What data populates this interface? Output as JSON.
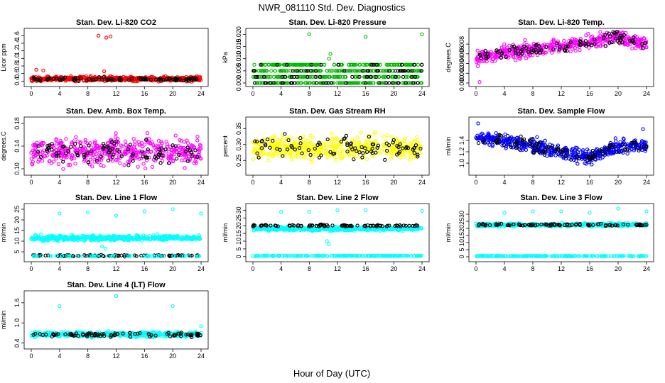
{
  "figure": {
    "title": "NWR_081110  Std. Dev. Diagnostics",
    "xlabel": "Hour of Day (UTC)"
  },
  "chart_data": [
    {
      "type": "scatter",
      "title": "Stan. Dev. Li-820 CO2",
      "ylabel": "Licor ppm",
      "xlim": [
        0,
        24
      ],
      "xticks": [
        0,
        4,
        8,
        12,
        16,
        20,
        24
      ],
      "ylim": [
        0.35,
        1.7
      ],
      "yticks": [
        0.4,
        0.6,
        0.8,
        1.0,
        1.2,
        1.4,
        1.6
      ],
      "ytick_labels": [
        "0.4",
        "0.6",
        "0.8",
        "1.0",
        "1.2",
        "1.4",
        "1.6"
      ],
      "color": "#ff0000",
      "series": [
        {
          "color": "#ff0000",
          "base": 0.46,
          "spread": 0.05,
          "count": 520,
          "dist": "dense"
        },
        {
          "color": "#000000",
          "base": 0.45,
          "spread": 0.04,
          "count": 90,
          "dist": "dense"
        }
      ],
      "outliers": [
        {
          "x": 9.5,
          "y": 1.6
        },
        {
          "x": 10.6,
          "y": 1.55
        },
        {
          "x": 11.2,
          "y": 1.58
        },
        {
          "x": 0.7,
          "y": 0.7
        },
        {
          "x": 1.7,
          "y": 0.68
        },
        {
          "x": 10.3,
          "y": 0.66
        }
      ]
    },
    {
      "type": "scatter",
      "title": "Stan. Dev. Li-820 Pressure",
      "ylabel": "kPa",
      "xlim": [
        0,
        24
      ],
      "xticks": [
        0,
        4,
        8,
        12,
        16,
        20,
        24
      ],
      "ylim": [
        0,
        0.021
      ],
      "yticks": [
        0,
        0.005,
        0.01,
        0.015,
        0.02
      ],
      "ytick_labels": [
        "0.000",
        "0.005",
        "0.010",
        "0.015",
        "0.020"
      ],
      "color": "#00bb00",
      "series": [
        {
          "color": "#00bb00",
          "levels": [
            0,
            0.0025,
            0.005,
            0.0075
          ],
          "count": 520,
          "dist": "levels"
        },
        {
          "color": "#000000",
          "levels": [
            0,
            0.0025,
            0.005,
            0.0075
          ],
          "count": 90,
          "dist": "levels"
        }
      ],
      "outliers": [
        {
          "x": 8,
          "y": 0.02
        },
        {
          "x": 11,
          "y": 0.012
        },
        {
          "x": 16,
          "y": 0.019
        },
        {
          "x": 24,
          "y": 0.02
        },
        {
          "x": 10.8,
          "y": 0.01
        }
      ]
    },
    {
      "type": "scatter",
      "title": "Stan. Dev. Li-820 Temp.",
      "ylabel": "degrees.C",
      "xlim": [
        0,
        24
      ],
      "xticks": [
        0,
        4,
        8,
        12,
        16,
        20,
        24
      ],
      "ylim": [
        0,
        0.0105
      ],
      "yticks": [
        0,
        0.002,
        0.004,
        0.006,
        0.008
      ],
      "ytick_labels": [
        "0.000",
        "0.002",
        "0.004",
        "0.006",
        "0.008"
      ],
      "color": "#ff00ff",
      "series": [
        {
          "color": "#ff00ff",
          "count": 480,
          "dist": "trend",
          "trend": [
            [
              0,
              0.005
            ],
            [
              3,
              0.006
            ],
            [
              8,
              0.007
            ],
            [
              14,
              0.008
            ],
            [
              18,
              0.009
            ],
            [
              20,
              0.0098
            ],
            [
              22,
              0.0085
            ],
            [
              24,
              0.008
            ]
          ],
          "spread": 0.0012
        },
        {
          "color": "#000000",
          "count": 90,
          "dist": "trend",
          "trend": [
            [
              0,
              0.005
            ],
            [
              3,
              0.006
            ],
            [
              8,
              0.007
            ],
            [
              14,
              0.008
            ],
            [
              18,
              0.009
            ],
            [
              20,
              0.0098
            ],
            [
              22,
              0.0085
            ],
            [
              24,
              0.008
            ]
          ],
          "spread": 0.0011
        }
      ],
      "outliers": [
        {
          "x": 0.5,
          "y": 0.0002
        }
      ]
    },
    {
      "type": "scatter",
      "title": "Stan. Dev. Amb. Box Temp.",
      "ylabel": "degrees.C",
      "xlim": [
        0,
        24
      ],
      "xticks": [
        0,
        4,
        8,
        12,
        16,
        20,
        24
      ],
      "ylim": [
        0.095,
        0.185
      ],
      "yticks": [
        0.1,
        0.14,
        0.18
      ],
      "ytick_labels": [
        "0.10",
        "0.14",
        "0.18"
      ],
      "color": "#ff00ff",
      "series": [
        {
          "color": "#ff00ff",
          "base": 0.13,
          "spread": 0.02,
          "count": 480,
          "dist": "dense"
        },
        {
          "color": "#000000",
          "base": 0.13,
          "spread": 0.018,
          "count": 90,
          "dist": "dense"
        }
      ],
      "outliers": []
    },
    {
      "type": "scatter",
      "title": "Stan. Dev. Gas Stream RH",
      "ylabel": "percent",
      "xlim": [
        0,
        24
      ],
      "xticks": [
        0,
        4,
        8,
        12,
        16,
        20,
        24
      ],
      "ylim": [
        0.215,
        0.375
      ],
      "yticks": [
        0.25,
        0.3,
        0.35
      ],
      "ytick_labels": [
        "0.25",
        "0.30",
        "0.35"
      ],
      "color": "#ffff00",
      "series": [
        {
          "color": "#ffff00",
          "base": 0.29,
          "spread": 0.03,
          "count": 480,
          "dist": "dense"
        },
        {
          "color": "#000000",
          "base": 0.29,
          "spread": 0.03,
          "count": 90,
          "dist": "dense"
        }
      ],
      "outliers": []
    },
    {
      "type": "scatter",
      "title": "Stan. Dev. Sample Flow",
      "ylabel": "ml/min",
      "xlim": [
        0,
        24
      ],
      "xticks": [
        0,
        4,
        8,
        12,
        16,
        20,
        24
      ],
      "ylim": [
        0.85,
        1.75
      ],
      "yticks": [
        1.0,
        1.2,
        1.4
      ],
      "ytick_labels": [
        "1.0",
        "1.2",
        "1.4"
      ],
      "color": "#0000ff",
      "series": [
        {
          "color": "#0000ff",
          "count": 480,
          "dist": "trend",
          "trend": [
            [
              0,
              1.45
            ],
            [
              4,
              1.4
            ],
            [
              8,
              1.3
            ],
            [
              12,
              1.2
            ],
            [
              16,
              1.1
            ],
            [
              20,
              1.3
            ],
            [
              24,
              1.3
            ]
          ],
          "spread": 0.1
        },
        {
          "color": "#000000",
          "count": 90,
          "dist": "trend",
          "trend": [
            [
              0,
              1.45
            ],
            [
              4,
              1.4
            ],
            [
              8,
              1.3
            ],
            [
              12,
              1.2
            ],
            [
              16,
              1.1
            ],
            [
              20,
              1.3
            ],
            [
              24,
              1.3
            ]
          ],
          "spread": 0.09
        }
      ],
      "outliers": [
        {
          "x": 0.3,
          "y": 1.7
        },
        {
          "x": 23.5,
          "y": 1.6
        }
      ]
    },
    {
      "type": "scatter",
      "title": "Stan. Dev. Line 1 Flow",
      "ylabel": "ml/min",
      "xlim": [
        0,
        24
      ],
      "xticks": [
        0,
        4,
        8,
        12,
        16,
        20,
        24
      ],
      "ylim": [
        2,
        26
      ],
      "yticks": [
        5,
        10,
        15,
        20,
        25
      ],
      "ytick_labels": [
        "5",
        "10",
        "15",
        "20",
        "25"
      ],
      "color": "#00ffff",
      "series": [
        {
          "color": "#00ffff",
          "base": 11.5,
          "spread": 1.0,
          "count": 480,
          "dist": "dense"
        },
        {
          "color": "#000000",
          "base": 3.2,
          "spread": 0.3,
          "count": 90,
          "dist": "dense"
        },
        {
          "color": "#00ffff",
          "base": 3.0,
          "spread": 0.2,
          "count": 60,
          "dist": "dense"
        }
      ],
      "outliers": [
        {
          "x": 4,
          "y": 23
        },
        {
          "x": 8,
          "y": 23.5
        },
        {
          "x": 12,
          "y": 22
        },
        {
          "x": 16,
          "y": 24
        },
        {
          "x": 20,
          "y": 25
        },
        {
          "x": 24,
          "y": 23
        },
        {
          "x": 10,
          "y": 7.5
        },
        {
          "x": 10.5,
          "y": 6.5
        }
      ]
    },
    {
      "type": "scatter",
      "title": "Stan. Dev. Line 2 Flow",
      "ylabel": "ml/min",
      "xlim": [
        0,
        24
      ],
      "xticks": [
        0,
        4,
        8,
        12,
        16,
        20,
        24
      ],
      "ylim": [
        -1,
        32
      ],
      "yticks": [
        0,
        5,
        10,
        15,
        20,
        25,
        30
      ],
      "ytick_labels": [
        "0",
        "5",
        "10",
        "15",
        "20",
        "25",
        "30"
      ],
      "color": "#00ffff",
      "series": [
        {
          "color": "#00ffff",
          "base": 18,
          "spread": 1.0,
          "count": 480,
          "dist": "dense"
        },
        {
          "color": "#000000",
          "base": 20,
          "spread": 0.5,
          "count": 90,
          "dist": "dense"
        },
        {
          "color": "#00ffff",
          "base": 0.5,
          "spread": 0.15,
          "count": 200,
          "dist": "dense"
        }
      ],
      "outliers": [
        {
          "x": 4,
          "y": 29
        },
        {
          "x": 8,
          "y": 29
        },
        {
          "x": 12,
          "y": 30
        },
        {
          "x": 16,
          "y": 30
        },
        {
          "x": 24,
          "y": 29.5
        },
        {
          "x": 10.5,
          "y": 10
        },
        {
          "x": 10.8,
          "y": 8
        }
      ]
    },
    {
      "type": "scatter",
      "title": "Stan. Dev. Line 3 Flow",
      "ylabel": "ml/min",
      "xlim": [
        0,
        24
      ],
      "xticks": [
        0,
        4,
        8,
        12,
        16,
        20,
        24
      ],
      "ylim": [
        -1,
        35
      ],
      "yticks": [
        0,
        5,
        10,
        15,
        20,
        25,
        30
      ],
      "ytick_labels": [
        "0",
        "5",
        "10",
        "15",
        "20",
        "25",
        "30"
      ],
      "color": "#00ffff",
      "series": [
        {
          "color": "#00ffff",
          "base": 22.5,
          "spread": 1.0,
          "count": 480,
          "dist": "dense"
        },
        {
          "color": "#000000",
          "base": 22.5,
          "spread": 0.6,
          "count": 90,
          "dist": "dense"
        },
        {
          "color": "#00ffff",
          "base": 0.5,
          "spread": 0.15,
          "count": 200,
          "dist": "dense"
        }
      ],
      "outliers": [
        {
          "x": 4,
          "y": 31
        },
        {
          "x": 8,
          "y": 32
        },
        {
          "x": 12,
          "y": 32
        },
        {
          "x": 16,
          "y": 31
        },
        {
          "x": 20,
          "y": 34
        },
        {
          "x": 24,
          "y": 32
        }
      ]
    },
    {
      "type": "scatter",
      "title": "Stan. Dev. Line 4 (LT) Flow",
      "ylabel": "ml/min",
      "xlim": [
        0,
        24
      ],
      "xticks": [
        0,
        4,
        8,
        12,
        16,
        20,
        24
      ],
      "ylim": [
        0.33,
        1.85
      ],
      "yticks": [
        0.4,
        1.0,
        1.6
      ],
      "ytick_labels": [
        "0.4",
        "1.0",
        "1.6"
      ],
      "color": "#00ffff",
      "series": [
        {
          "color": "#00ffff",
          "base": 0.66,
          "spread": 0.06,
          "count": 480,
          "dist": "dense"
        },
        {
          "color": "#000000",
          "base": 0.65,
          "spread": 0.06,
          "count": 90,
          "dist": "dense"
        }
      ],
      "outliers": [
        {
          "x": 4,
          "y": 1.5
        },
        {
          "x": 12,
          "y": 1.8
        },
        {
          "x": 20,
          "y": 1.5
        },
        {
          "x": 24,
          "y": 0.9
        }
      ]
    }
  ]
}
